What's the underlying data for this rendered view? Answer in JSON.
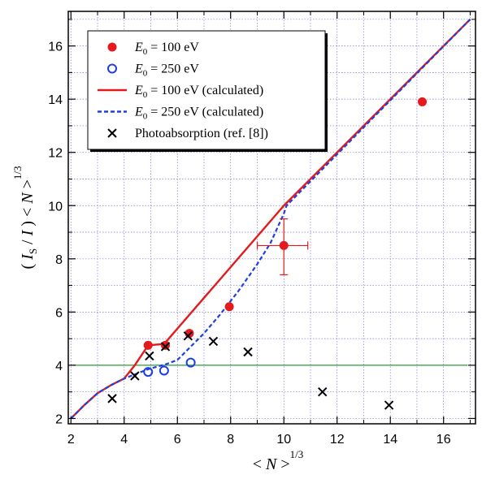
{
  "chart_data": {
    "type": "scatter",
    "title": "",
    "xlabel": "< N >^{1/3}",
    "ylabel": "( I_S / I ) < N >^{1/3}",
    "xlim": [
      1.9,
      17.2
    ],
    "ylim": [
      1.8,
      17.3
    ],
    "x_ticks": [
      2,
      4,
      6,
      8,
      10,
      12,
      14,
      16
    ],
    "y_ticks": [
      2,
      4,
      6,
      8,
      10,
      12,
      14,
      16
    ],
    "grid": true,
    "legend_position": "top-left",
    "reference_line": {
      "y": 4,
      "color": "#2a9d2a"
    },
    "series": [
      {
        "name": "E0 = 100 eV",
        "legend_label": "E0 = 100 eV",
        "kind": "filled-circle",
        "color": "#e41a1c",
        "points": [
          [
            4.9,
            4.75
          ],
          [
            5.55,
            4.75
          ],
          [
            6.45,
            5.2
          ],
          [
            7.95,
            6.2
          ],
          [
            10.0,
            8.5
          ],
          [
            15.2,
            13.9
          ]
        ],
        "error_bar": {
          "x": 10.0,
          "y": 8.5,
          "xerr": [
            1.0,
            0.9
          ],
          "yerr": [
            1.1,
            1.0
          ]
        }
      },
      {
        "name": "E0 = 250 eV",
        "legend_label": "E0 = 250 eV",
        "kind": "open-circle",
        "color": "#1f3fdf",
        "points": [
          [
            4.9,
            3.75
          ],
          [
            5.5,
            3.8
          ],
          [
            6.5,
            4.1
          ]
        ]
      },
      {
        "name": "E0 = 100 eV (calculated)",
        "legend_label": "E0 = 100 eV (calculated)",
        "kind": "line",
        "color": "#e41a1c",
        "points": [
          [
            2.0,
            2.0
          ],
          [
            2.5,
            2.5
          ],
          [
            3.0,
            2.95
          ],
          [
            3.5,
            3.25
          ],
          [
            4.0,
            3.5
          ],
          [
            4.4,
            4.0
          ],
          [
            4.9,
            4.75
          ],
          [
            5.5,
            4.8
          ],
          [
            10.0,
            10.0
          ],
          [
            17.0,
            17.0
          ]
        ]
      },
      {
        "name": "E0 = 250 eV (calculated)",
        "legend_label": "E0 = 250 eV (calculated)",
        "kind": "dashed-line",
        "color": "#1f3fdf",
        "points": [
          [
            2.0,
            2.0
          ],
          [
            2.5,
            2.5
          ],
          [
            3.0,
            2.95
          ],
          [
            3.5,
            3.25
          ],
          [
            4.0,
            3.5
          ],
          [
            4.9,
            3.85
          ],
          [
            5.6,
            4.05
          ],
          [
            6.0,
            4.2
          ],
          [
            6.3,
            4.5
          ],
          [
            7.0,
            5.2
          ],
          [
            7.6,
            5.9
          ],
          [
            8.3,
            6.8
          ],
          [
            9.0,
            7.8
          ],
          [
            9.5,
            8.6
          ],
          [
            10.0,
            9.7
          ],
          [
            10.1,
            10.0
          ],
          [
            17.0,
            17.0
          ]
        ]
      },
      {
        "name": "Photoabsorption (ref. [8])",
        "legend_label": "Photoabsorption (ref. [8])",
        "kind": "cross",
        "color": "#000000",
        "points": [
          [
            3.55,
            2.75
          ],
          [
            4.4,
            3.6
          ],
          [
            4.95,
            4.35
          ],
          [
            5.55,
            4.7
          ],
          [
            6.4,
            5.1
          ],
          [
            7.35,
            4.9
          ],
          [
            8.65,
            4.5
          ],
          [
            11.45,
            3.0
          ],
          [
            13.95,
            2.5
          ]
        ]
      }
    ]
  }
}
